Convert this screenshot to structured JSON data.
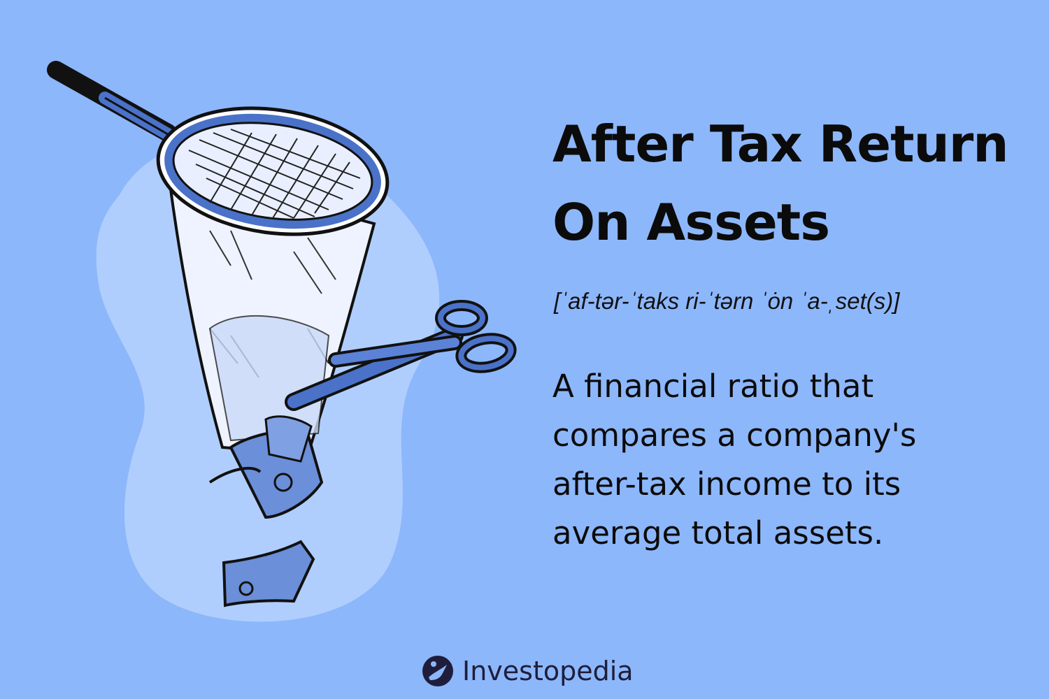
{
  "colors": {
    "background": "#8db7fb",
    "blob": "#b0cefd",
    "ink": "#0b0b0b",
    "net_blue": "#4a72c8",
    "logo_dark": "#1e1e3c"
  },
  "title_lines": [
    "After Tax Return",
    "On Assets"
  ],
  "pronunciation": "[ˈaf-tər-ˈtaks ri-ˈtərn ˈȯn ˈa-ˌset(s)]",
  "definition_lines": [
    "A financial ratio that",
    "compares a company's",
    "after-tax income to its",
    "average total assets."
  ],
  "brand": {
    "name": "Investopedia",
    "icon": "investopedia-logo-icon"
  },
  "illustration": {
    "icons": [
      "butterfly-net-icon",
      "scissors-icon",
      "dollar-bill-icon"
    ]
  }
}
